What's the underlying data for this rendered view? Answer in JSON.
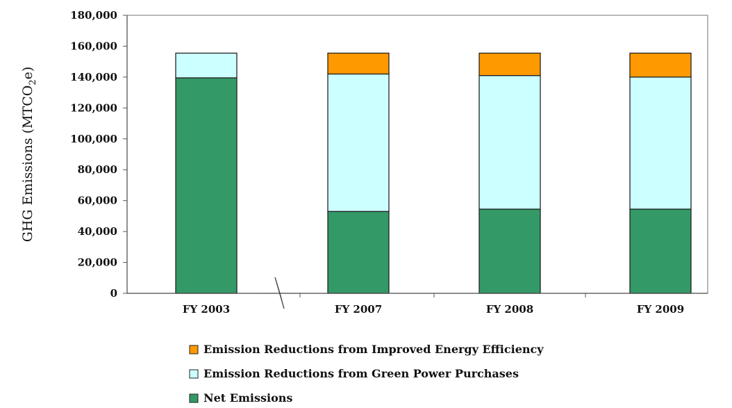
{
  "chart_data": {
    "type": "bar",
    "stacked": true,
    "categories": [
      "FY 2003",
      "FY 2007",
      "FY 2008",
      "FY 2009"
    ],
    "series": [
      {
        "name": "Net Emissions",
        "color": "#339966",
        "values": [
          139500,
          53000,
          54500,
          54500
        ]
      },
      {
        "name": "Emission Reductions from Green Power Purchases",
        "color": "#CCFFFF",
        "values": [
          16000,
          89000,
          86500,
          85500
        ]
      },
      {
        "name": "Emission Reductions from Improved Energy Efficiency",
        "color": "#FF9900",
        "values": [
          0,
          13500,
          14500,
          15500
        ]
      }
    ],
    "legend_order": [
      "Emission Reductions from Improved Energy Efficiency",
      "Emission Reductions from Green Power Purchases",
      "Net Emissions"
    ],
    "legend_position": "bottom",
    "ylabel": "GHG Emissions (MTCO",
    "ylabel_subscript": "2",
    "ylabel_suffix": "e)",
    "ylim": [
      0,
      180000
    ],
    "yticks": [
      0,
      20000,
      40000,
      60000,
      80000,
      100000,
      120000,
      140000,
      160000,
      180000
    ],
    "ytick_labels": [
      "0",
      "20,000",
      "40,000",
      "60,000",
      "80,000",
      "100,000",
      "120,000",
      "140,000",
      "160,000",
      "180,000"
    ],
    "axis_break_after_category": 0,
    "grid": false
  }
}
